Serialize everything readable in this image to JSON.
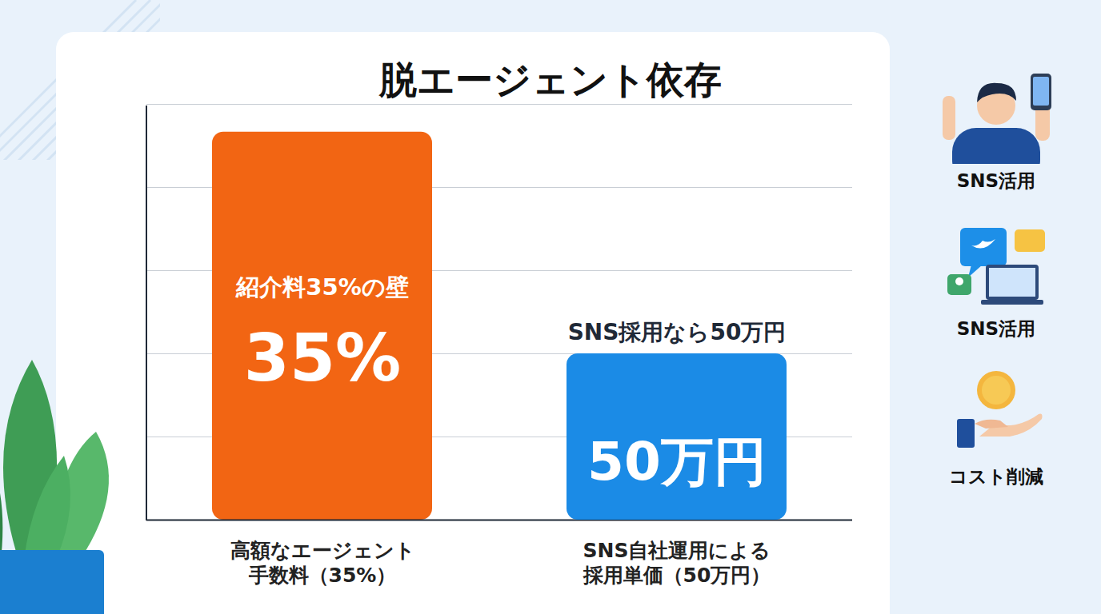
{
  "chart_data": {
    "type": "bar",
    "title": "脱エージェント依存",
    "categories": [
      "高額なエージェント手数料（35%）",
      "SNS自社運用による採用単価（50万円）"
    ],
    "series": [
      {
        "values": [
          35,
          null
        ],
        "value_labels": [
          "35%",
          null
        ],
        "color": "#f26513"
      },
      {
        "values": [
          null,
          50
        ],
        "value_labels": [
          null,
          "50万円"
        ],
        "color": "#1b8be6",
        "axis": "y2"
      }
    ],
    "annotations": [
      "紹介料35%の壁",
      "SNS採用なら50万円"
    ],
    "ylim": [
      0,
      37.5
    ],
    "yticks": [
      0,
      7.5,
      15,
      22.5,
      30,
      37.5
    ],
    "y2lim": [
      0,
      125
    ],
    "y2ticks": [
      0,
      25,
      50,
      75,
      100,
      125
    ],
    "grid": true,
    "data_labels": true,
    "tick_labels": "x"
  },
  "side_labels": [
    "SNS活用",
    "SNS活用",
    "コスト削減"
  ]
}
